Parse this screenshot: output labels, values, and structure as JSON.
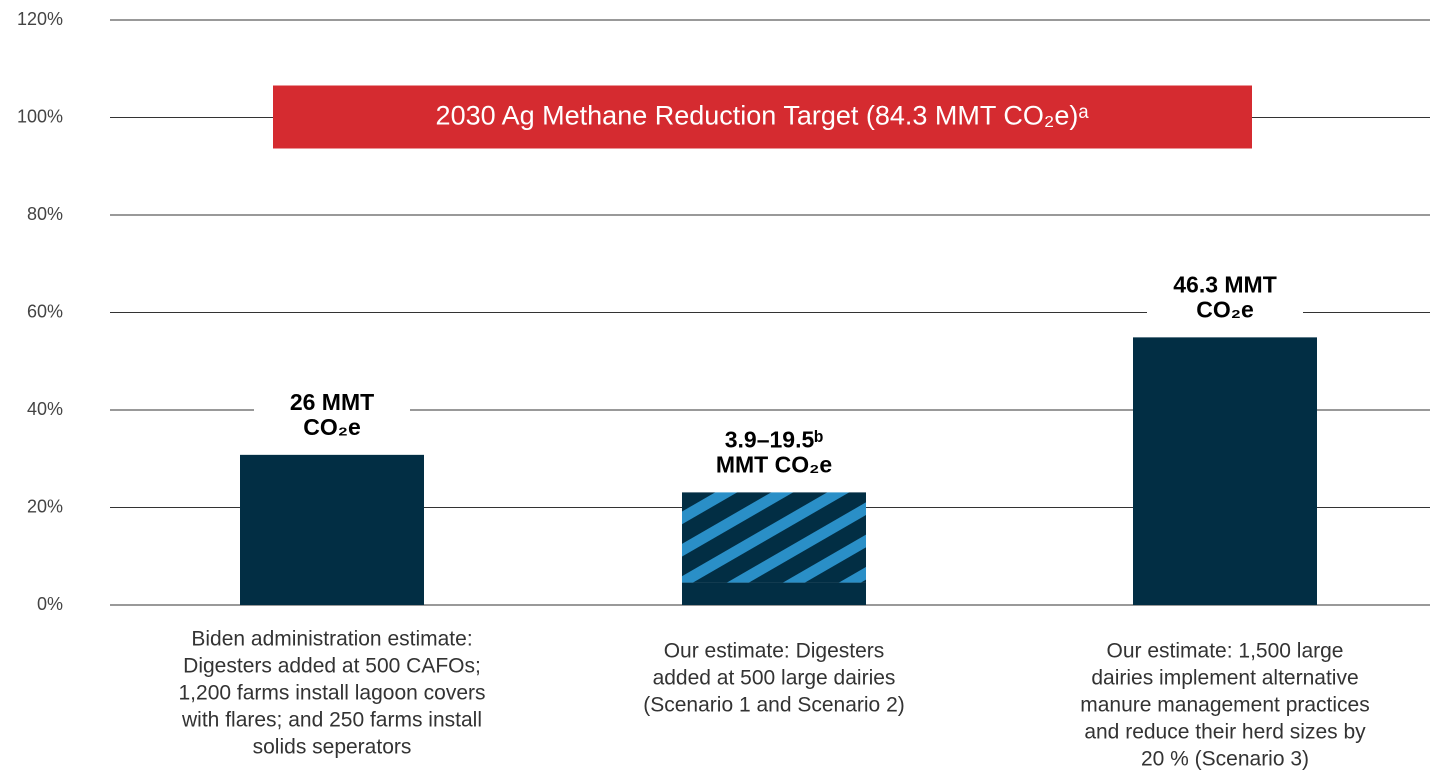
{
  "chart_data": {
    "type": "bar",
    "stacked": true,
    "ylim": [
      0,
      120
    ],
    "yticks": [
      {
        "value": 0,
        "label": "0%"
      },
      {
        "value": 20,
        "label": "20%"
      },
      {
        "value": 40,
        "label": "40%"
      },
      {
        "value": 60,
        "label": "60%"
      },
      {
        "value": 80,
        "label": "80%"
      },
      {
        "value": 100,
        "label": "100%"
      },
      {
        "value": 120,
        "label": "120%"
      }
    ],
    "grid": true,
    "categories": [
      [
        "Biden administration estimate:",
        "Digesters added at 500 CAFOs;",
        "1,200 farms install lagoon covers",
        "with flares; and 250 farms install",
        "solids seperators"
      ],
      [
        "Our estimate: Digesters",
        "added at 500 large dairies",
        "(Scenario 1 and Scenario 2)"
      ],
      [
        "Our estimate: 1,500 large",
        "dairies implement alternative",
        "manure management practices",
        "and reduce their herd sizes by",
        "20 % (Scenario 3)"
      ]
    ],
    "series": [
      {
        "color": "#022e44",
        "values": [
          30.8,
          4.6,
          54.9
        ]
      },
      {
        "color": "#2a8fc7",
        "pattern": "hatch",
        "values": [
          null,
          18.5,
          null
        ]
      }
    ],
    "bar_labels": [
      [
        "26 MMT",
        "CO₂e"
      ],
      [
        "3.9–19.5ᵇ",
        "MMT CO₂e"
      ],
      [
        "46.3 MMT",
        "CO₂e"
      ]
    ],
    "target": {
      "value": 100,
      "label": "2030 Ag Methane Reduction Target (84.3 MMT CO₂e)ᵃ",
      "color": "#d52b30"
    }
  }
}
